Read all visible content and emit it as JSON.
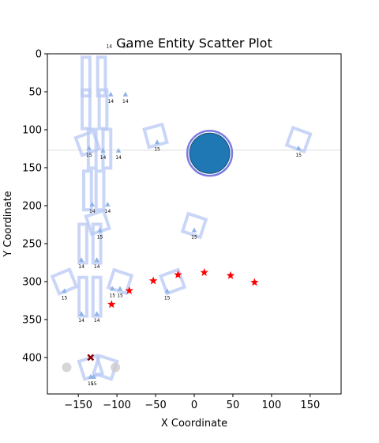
{
  "chart_data": {
    "type": "scatter",
    "title": "Game Entity Scatter Plot",
    "xlabel": "X Coordinate",
    "ylabel": "Y Coordinate",
    "xlim": [
      -190,
      190
    ],
    "ylim": [
      448,
      0
    ],
    "y_inverted": true,
    "xticks": [
      -150,
      -100,
      -50,
      0,
      50,
      100,
      150
    ],
    "yticks": [
      0,
      50,
      100,
      150,
      200,
      250,
      300,
      350,
      400
    ],
    "grid": false,
    "horizontal_line": {
      "y": 127,
      "color": "#dddddd"
    },
    "colors": {
      "frame": "#b8c8f4",
      "marker": "#8fb3e6",
      "player_fill": "#1f77b4",
      "player_ring": "#7b7be0",
      "star": "#ff0000",
      "cross": "#8b0000",
      "ghost": "#cccccc"
    },
    "series": [
      {
        "kind": "frames",
        "points": [
          {
            "x": -140,
            "y": 30,
            "w": 10,
            "h": 50,
            "rot": 0
          },
          {
            "x": -120,
            "y": 30,
            "w": 10,
            "h": 50,
            "rot": 0
          },
          {
            "x": -140,
            "y": 73,
            "w": 10,
            "h": 50,
            "rot": 0
          },
          {
            "x": -118,
            "y": 73,
            "w": 10,
            "h": 50,
            "rot": 0
          },
          {
            "x": -132,
            "y": 125,
            "w": 10,
            "h": 50,
            "rot": 0
          },
          {
            "x": -113,
            "y": 125,
            "w": 10,
            "h": 50,
            "rot": 0
          },
          {
            "x": -138,
            "y": 180,
            "w": 10,
            "h": 50,
            "rot": 0
          },
          {
            "x": -122,
            "y": 180,
            "w": 10,
            "h": 50,
            "rot": 0
          },
          {
            "x": -144,
            "y": 250,
            "w": 10,
            "h": 50,
            "rot": 0
          },
          {
            "x": -126,
            "y": 250,
            "w": 10,
            "h": 50,
            "rot": 0
          },
          {
            "x": -144,
            "y": 320,
            "w": 10,
            "h": 50,
            "rot": 0
          },
          {
            "x": -126,
            "y": 320,
            "w": 10,
            "h": 50,
            "rot": 0
          },
          {
            "x": -138,
            "y": 118,
            "w": 24,
            "h": 24,
            "rot": -20
          },
          {
            "x": -50,
            "y": 108,
            "w": 24,
            "h": 24,
            "rot": -15
          },
          {
            "x": -125,
            "y": 222,
            "w": 24,
            "h": 24,
            "rot": -18
          },
          {
            "x": 0,
            "y": 226,
            "w": 24,
            "h": 24,
            "rot": 18
          },
          {
            "x": 135,
            "y": 113,
            "w": 24,
            "h": 24,
            "rot": 20
          },
          {
            "x": -168,
            "y": 300,
            "w": 24,
            "h": 24,
            "rot": -22
          },
          {
            "x": -96,
            "y": 300,
            "w": 24,
            "h": 24,
            "rot": 18
          },
          {
            "x": -28,
            "y": 300,
            "w": 24,
            "h": 24,
            "rot": -20
          },
          {
            "x": -134,
            "y": 413,
            "w": 24,
            "h": 24,
            "rot": -18
          },
          {
            "x": -115,
            "y": 413,
            "w": 24,
            "h": 24,
            "rot": 18
          }
        ]
      },
      {
        "kind": "markers",
        "points": [
          {
            "x": -108,
            "y": 54,
            "label": "14"
          },
          {
            "x": -89,
            "y": 54,
            "label": "14"
          },
          {
            "x": -136,
            "y": 125,
            "label": "15"
          },
          {
            "x": -118,
            "y": 128,
            "label": "14"
          },
          {
            "x": -98,
            "y": 128,
            "label": "14"
          },
          {
            "x": -48,
            "y": 117,
            "label": "15"
          },
          {
            "x": 135,
            "y": 125,
            "label": "15"
          },
          {
            "x": -132,
            "y": 199,
            "label": "14"
          },
          {
            "x": -112,
            "y": 199,
            "label": "14"
          },
          {
            "x": -122,
            "y": 233,
            "label": "15"
          },
          {
            "x": 0,
            "y": 233,
            "label": "15"
          },
          {
            "x": -146,
            "y": 272,
            "label": "14"
          },
          {
            "x": -126,
            "y": 272,
            "label": "14"
          },
          {
            "x": -168,
            "y": 313,
            "label": "15"
          },
          {
            "x": -106,
            "y": 310,
            "label": "15"
          },
          {
            "x": -96,
            "y": 310,
            "label": "15"
          },
          {
            "x": -35,
            "y": 313,
            "label": "15"
          },
          {
            "x": -146,
            "y": 343,
            "label": "14"
          },
          {
            "x": -126,
            "y": 343,
            "label": "14"
          },
          {
            "x": -134,
            "y": 426,
            "label": "15"
          },
          {
            "x": -130,
            "y": 426,
            "label": "15"
          }
        ]
      },
      {
        "kind": "stars",
        "points": [
          {
            "x": -107,
            "y": 330
          },
          {
            "x": -84,
            "y": 312
          },
          {
            "x": -53,
            "y": 299
          },
          {
            "x": -21,
            "y": 291
          },
          {
            "x": 13,
            "y": 288
          },
          {
            "x": 47,
            "y": 292
          },
          {
            "x": 78,
            "y": 301
          }
        ]
      },
      {
        "kind": "player",
        "points": [
          {
            "x": 20,
            "y": 131,
            "r": 26,
            "ring": 29
          }
        ]
      },
      {
        "kind": "cross",
        "points": [
          {
            "x": -134,
            "y": 400
          }
        ]
      },
      {
        "kind": "ghosts",
        "points": [
          {
            "x": -165,
            "y": 413
          },
          {
            "x": -102,
            "y": 413
          }
        ]
      }
    ],
    "top_labels": [
      {
        "x": -110,
        "y": -8,
        "label": "14"
      },
      {
        "x": -89,
        "y": -8,
        "label": "14"
      }
    ]
  }
}
